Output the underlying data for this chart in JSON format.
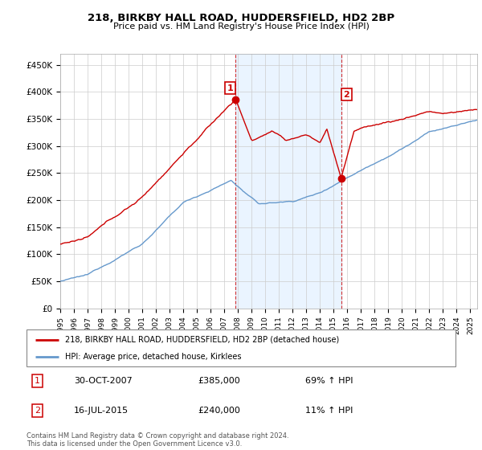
{
  "title": "218, BIRKBY HALL ROAD, HUDDERSFIELD, HD2 2BP",
  "subtitle": "Price paid vs. HM Land Registry's House Price Index (HPI)",
  "legend_line1": "218, BIRKBY HALL ROAD, HUDDERSFIELD, HD2 2BP (detached house)",
  "legend_line2": "HPI: Average price, detached house, Kirklees",
  "annotation1_date": "30-OCT-2007",
  "annotation1_price": "£385,000",
  "annotation1_hpi": "69% ↑ HPI",
  "annotation2_date": "16-JUL-2015",
  "annotation2_price": "£240,000",
  "annotation2_hpi": "11% ↑ HPI",
  "footer": "Contains HM Land Registry data © Crown copyright and database right 2024.\nThis data is licensed under the Open Government Licence v3.0.",
  "red_color": "#cc0000",
  "blue_color": "#6699cc",
  "shade_color": "#ddeeff",
  "ylim": [
    0,
    470000
  ],
  "yticks": [
    0,
    50000,
    100000,
    150000,
    200000,
    250000,
    300000,
    350000,
    400000,
    450000
  ],
  "ytick_labels": [
    "£0",
    "£50K",
    "£100K",
    "£150K",
    "£200K",
    "£250K",
    "£300K",
    "£350K",
    "£400K",
    "£450K"
  ],
  "marker1_x": 2007.83,
  "marker1_y": 385000,
  "marker2_x": 2015.54,
  "marker2_y": 240000,
  "vline1_x": 2007.83,
  "vline2_x": 2015.54,
  "xmin": 1995.0,
  "xmax": 2025.5
}
